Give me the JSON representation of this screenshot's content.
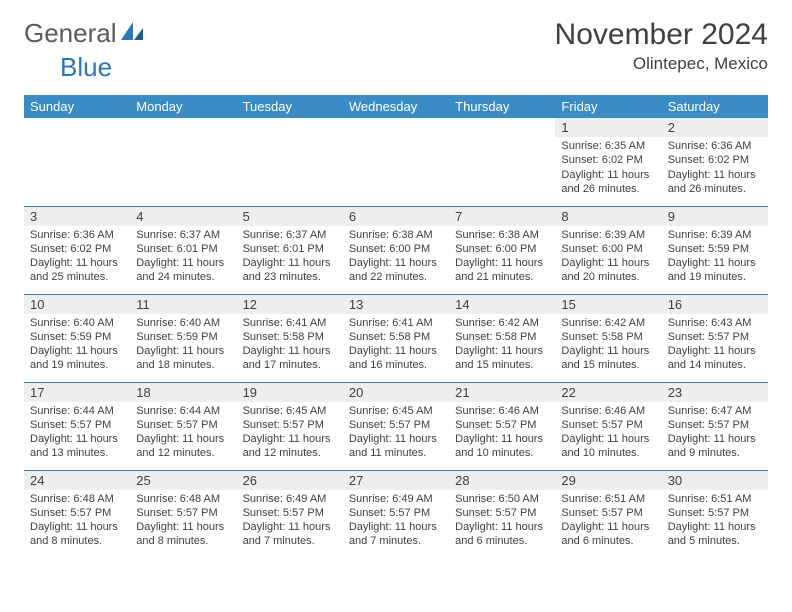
{
  "logo": {
    "word1": "General",
    "word2": "Blue"
  },
  "header": {
    "month_title": "November 2024",
    "location": "Olintepec, Mexico"
  },
  "weekdays": [
    "Sunday",
    "Monday",
    "Tuesday",
    "Wednesday",
    "Thursday",
    "Friday",
    "Saturday"
  ],
  "colors": {
    "header_bg": "#3b8bc4",
    "header_text": "#ffffff",
    "daynum_bg": "#eeeeee",
    "rule": "#4a7ba8",
    "body_text": "#404040",
    "logo_gray": "#5a5a5a",
    "logo_blue": "#2e75b6"
  },
  "weeks": [
    [
      {
        "n": "",
        "sr": "",
        "ss": "",
        "dl1": "",
        "dl2": "",
        "empty": true
      },
      {
        "n": "",
        "sr": "",
        "ss": "",
        "dl1": "",
        "dl2": "",
        "empty": true
      },
      {
        "n": "",
        "sr": "",
        "ss": "",
        "dl1": "",
        "dl2": "",
        "empty": true
      },
      {
        "n": "",
        "sr": "",
        "ss": "",
        "dl1": "",
        "dl2": "",
        "empty": true
      },
      {
        "n": "",
        "sr": "",
        "ss": "",
        "dl1": "",
        "dl2": "",
        "empty": true
      },
      {
        "n": "1",
        "sr": "Sunrise: 6:35 AM",
        "ss": "Sunset: 6:02 PM",
        "dl1": "Daylight: 11 hours",
        "dl2": "and 26 minutes."
      },
      {
        "n": "2",
        "sr": "Sunrise: 6:36 AM",
        "ss": "Sunset: 6:02 PM",
        "dl1": "Daylight: 11 hours",
        "dl2": "and 26 minutes."
      }
    ],
    [
      {
        "n": "3",
        "sr": "Sunrise: 6:36 AM",
        "ss": "Sunset: 6:02 PM",
        "dl1": "Daylight: 11 hours",
        "dl2": "and 25 minutes."
      },
      {
        "n": "4",
        "sr": "Sunrise: 6:37 AM",
        "ss": "Sunset: 6:01 PM",
        "dl1": "Daylight: 11 hours",
        "dl2": "and 24 minutes."
      },
      {
        "n": "5",
        "sr": "Sunrise: 6:37 AM",
        "ss": "Sunset: 6:01 PM",
        "dl1": "Daylight: 11 hours",
        "dl2": "and 23 minutes."
      },
      {
        "n": "6",
        "sr": "Sunrise: 6:38 AM",
        "ss": "Sunset: 6:00 PM",
        "dl1": "Daylight: 11 hours",
        "dl2": "and 22 minutes."
      },
      {
        "n": "7",
        "sr": "Sunrise: 6:38 AM",
        "ss": "Sunset: 6:00 PM",
        "dl1": "Daylight: 11 hours",
        "dl2": "and 21 minutes."
      },
      {
        "n": "8",
        "sr": "Sunrise: 6:39 AM",
        "ss": "Sunset: 6:00 PM",
        "dl1": "Daylight: 11 hours",
        "dl2": "and 20 minutes."
      },
      {
        "n": "9",
        "sr": "Sunrise: 6:39 AM",
        "ss": "Sunset: 5:59 PM",
        "dl1": "Daylight: 11 hours",
        "dl2": "and 19 minutes."
      }
    ],
    [
      {
        "n": "10",
        "sr": "Sunrise: 6:40 AM",
        "ss": "Sunset: 5:59 PM",
        "dl1": "Daylight: 11 hours",
        "dl2": "and 19 minutes."
      },
      {
        "n": "11",
        "sr": "Sunrise: 6:40 AM",
        "ss": "Sunset: 5:59 PM",
        "dl1": "Daylight: 11 hours",
        "dl2": "and 18 minutes."
      },
      {
        "n": "12",
        "sr": "Sunrise: 6:41 AM",
        "ss": "Sunset: 5:58 PM",
        "dl1": "Daylight: 11 hours",
        "dl2": "and 17 minutes."
      },
      {
        "n": "13",
        "sr": "Sunrise: 6:41 AM",
        "ss": "Sunset: 5:58 PM",
        "dl1": "Daylight: 11 hours",
        "dl2": "and 16 minutes."
      },
      {
        "n": "14",
        "sr": "Sunrise: 6:42 AM",
        "ss": "Sunset: 5:58 PM",
        "dl1": "Daylight: 11 hours",
        "dl2": "and 15 minutes."
      },
      {
        "n": "15",
        "sr": "Sunrise: 6:42 AM",
        "ss": "Sunset: 5:58 PM",
        "dl1": "Daylight: 11 hours",
        "dl2": "and 15 minutes."
      },
      {
        "n": "16",
        "sr": "Sunrise: 6:43 AM",
        "ss": "Sunset: 5:57 PM",
        "dl1": "Daylight: 11 hours",
        "dl2": "and 14 minutes."
      }
    ],
    [
      {
        "n": "17",
        "sr": "Sunrise: 6:44 AM",
        "ss": "Sunset: 5:57 PM",
        "dl1": "Daylight: 11 hours",
        "dl2": "and 13 minutes."
      },
      {
        "n": "18",
        "sr": "Sunrise: 6:44 AM",
        "ss": "Sunset: 5:57 PM",
        "dl1": "Daylight: 11 hours",
        "dl2": "and 12 minutes."
      },
      {
        "n": "19",
        "sr": "Sunrise: 6:45 AM",
        "ss": "Sunset: 5:57 PM",
        "dl1": "Daylight: 11 hours",
        "dl2": "and 12 minutes."
      },
      {
        "n": "20",
        "sr": "Sunrise: 6:45 AM",
        "ss": "Sunset: 5:57 PM",
        "dl1": "Daylight: 11 hours",
        "dl2": "and 11 minutes."
      },
      {
        "n": "21",
        "sr": "Sunrise: 6:46 AM",
        "ss": "Sunset: 5:57 PM",
        "dl1": "Daylight: 11 hours",
        "dl2": "and 10 minutes."
      },
      {
        "n": "22",
        "sr": "Sunrise: 6:46 AM",
        "ss": "Sunset: 5:57 PM",
        "dl1": "Daylight: 11 hours",
        "dl2": "and 10 minutes."
      },
      {
        "n": "23",
        "sr": "Sunrise: 6:47 AM",
        "ss": "Sunset: 5:57 PM",
        "dl1": "Daylight: 11 hours",
        "dl2": "and 9 minutes."
      }
    ],
    [
      {
        "n": "24",
        "sr": "Sunrise: 6:48 AM",
        "ss": "Sunset: 5:57 PM",
        "dl1": "Daylight: 11 hours",
        "dl2": "and 8 minutes."
      },
      {
        "n": "25",
        "sr": "Sunrise: 6:48 AM",
        "ss": "Sunset: 5:57 PM",
        "dl1": "Daylight: 11 hours",
        "dl2": "and 8 minutes."
      },
      {
        "n": "26",
        "sr": "Sunrise: 6:49 AM",
        "ss": "Sunset: 5:57 PM",
        "dl1": "Daylight: 11 hours",
        "dl2": "and 7 minutes."
      },
      {
        "n": "27",
        "sr": "Sunrise: 6:49 AM",
        "ss": "Sunset: 5:57 PM",
        "dl1": "Daylight: 11 hours",
        "dl2": "and 7 minutes."
      },
      {
        "n": "28",
        "sr": "Sunrise: 6:50 AM",
        "ss": "Sunset: 5:57 PM",
        "dl1": "Daylight: 11 hours",
        "dl2": "and 6 minutes."
      },
      {
        "n": "29",
        "sr": "Sunrise: 6:51 AM",
        "ss": "Sunset: 5:57 PM",
        "dl1": "Daylight: 11 hours",
        "dl2": "and 6 minutes."
      },
      {
        "n": "30",
        "sr": "Sunrise: 6:51 AM",
        "ss": "Sunset: 5:57 PM",
        "dl1": "Daylight: 11 hours",
        "dl2": "and 5 minutes."
      }
    ]
  ]
}
